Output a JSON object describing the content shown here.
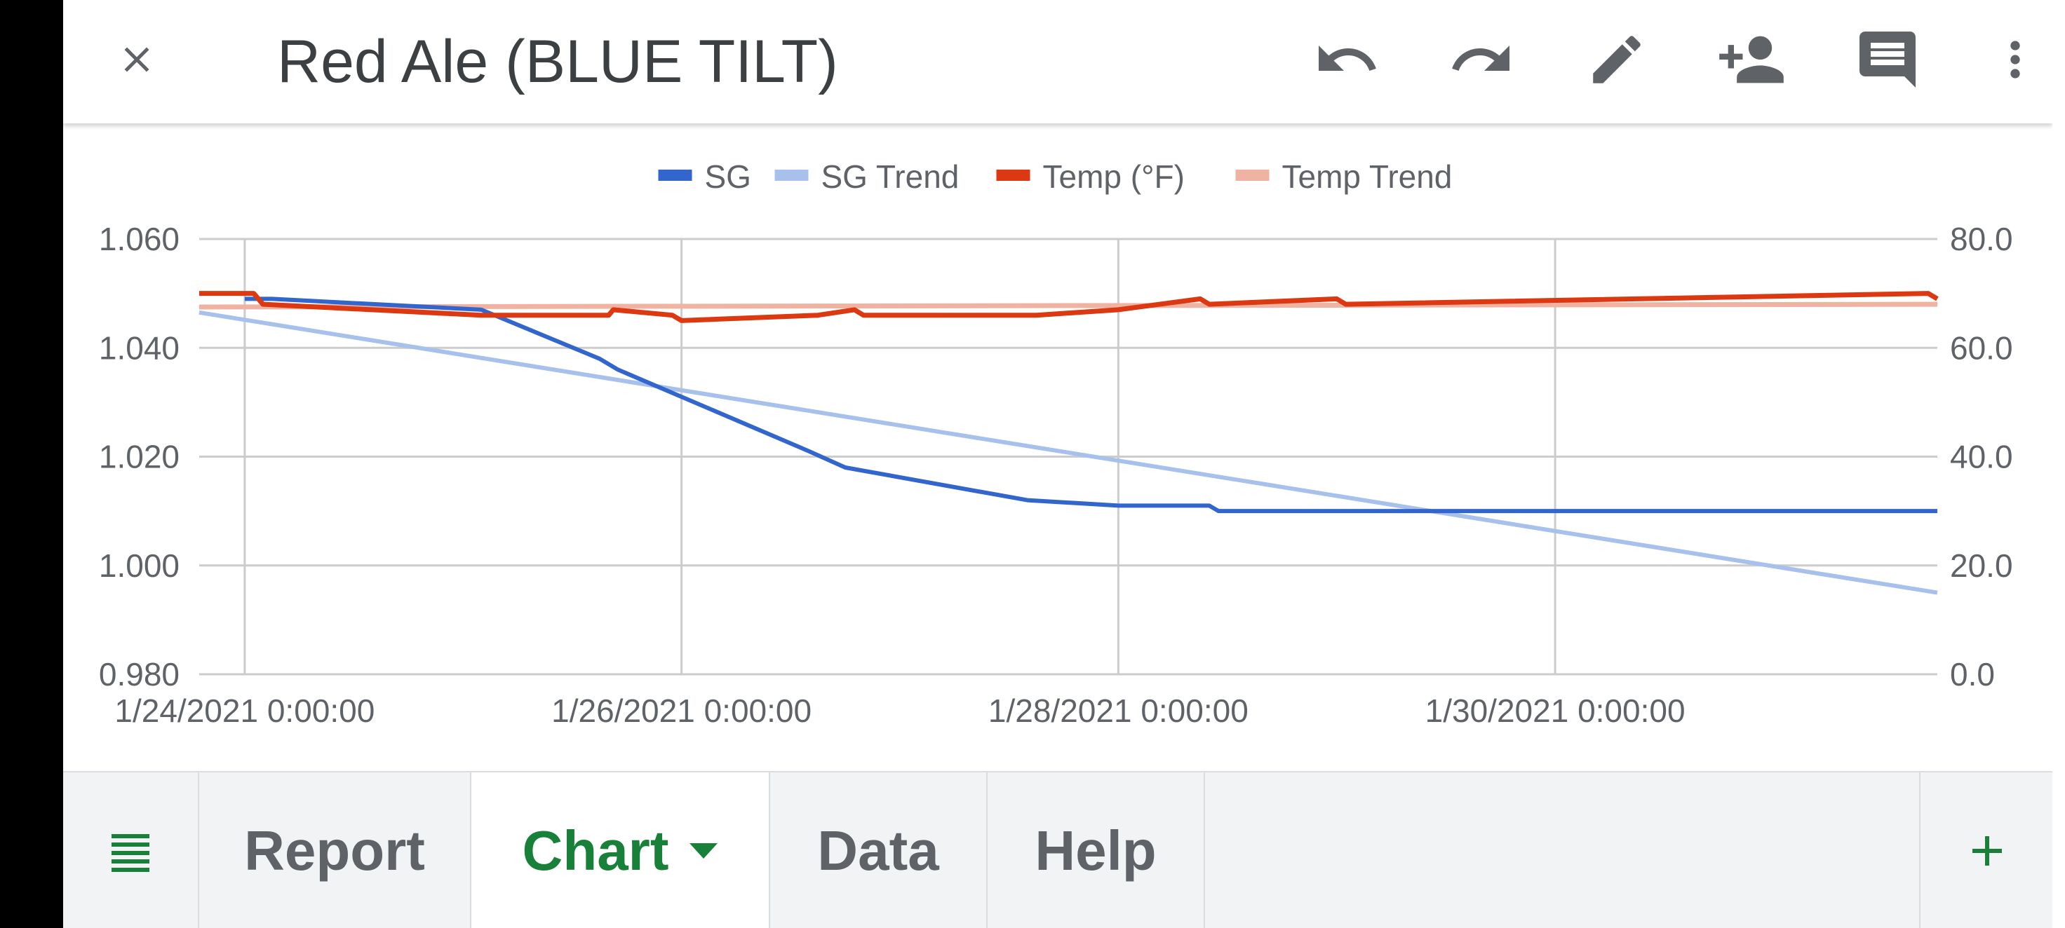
{
  "app": {
    "title": "Red Ale (BLUE TILT)",
    "icons": [
      "close-icon",
      "undo-icon",
      "redo-icon",
      "edit-icon",
      "add-person-icon",
      "comment-icon",
      "more-vert-icon"
    ]
  },
  "tabs": {
    "all_sheets_icon": "menu-icon",
    "items": [
      {
        "label": "Report",
        "active": false
      },
      {
        "label": "Chart",
        "active": true
      },
      {
        "label": "Data",
        "active": false
      },
      {
        "label": "Help",
        "active": false
      }
    ],
    "add_icon": "+"
  },
  "colors": {
    "sg": "#3366cc",
    "sg_trend": "#a8c0ec",
    "temp": "#dc3912",
    "temp_trend": "#f0b3a2",
    "active_tab": "#188038",
    "grid": "#cccccc"
  },
  "chart_data": {
    "type": "line",
    "legend_position": "top",
    "grid": true,
    "series": [
      {
        "name": "SG",
        "axis": "left",
        "points": [
          [
            "1/24/2021 0:00:00",
            1.049
          ],
          [
            "1/24/2021 3:00:00",
            1.049
          ],
          [
            "1/25/2021 2:00:00",
            1.047
          ],
          [
            "1/25/2021 15:00:00",
            1.038
          ],
          [
            "1/25/2021 17:00:00",
            1.036
          ],
          [
            "1/26/2021 0:00:00",
            1.031
          ],
          [
            "1/26/2021 14:00:00",
            1.021
          ],
          [
            "1/26/2021 18:00:00",
            1.018
          ],
          [
            "1/27/2021 14:00:00",
            1.012
          ],
          [
            "1/28/2021 0:00:00",
            1.011
          ],
          [
            "1/28/2021 10:00:00",
            1.011
          ],
          [
            "1/28/2021 11:00:00",
            1.01
          ],
          [
            "1/31/2021 18:00:00",
            1.01
          ]
        ]
      },
      {
        "name": "SG Trend",
        "axis": "left",
        "points": [
          [
            "1/23/2021 19:00:00",
            1.0465
          ],
          [
            "1/31/2021 18:00:00",
            0.995
          ]
        ]
      },
      {
        "name": "Temp (°F)",
        "axis": "right",
        "points": [
          [
            "1/23/2021 19:00:00",
            70
          ],
          [
            "1/24/2021 1:00:00",
            70
          ],
          [
            "1/24/2021 2:00:00",
            68
          ],
          [
            "1/25/2021 2:00:00",
            66
          ],
          [
            "1/25/2021 16:00:00",
            66
          ],
          [
            "1/25/2021 16:30:00",
            67
          ],
          [
            "1/25/2021 23:00:00",
            66
          ],
          [
            "1/26/2021 0:00:00",
            65
          ],
          [
            "1/26/2021 15:00:00",
            66
          ],
          [
            "1/26/2021 19:00:00",
            67
          ],
          [
            "1/26/2021 20:00:00",
            66
          ],
          [
            "1/27/2021 15:00:00",
            66
          ],
          [
            "1/28/2021 0:00:00",
            67
          ],
          [
            "1/28/2021 9:00:00",
            69
          ],
          [
            "1/28/2021 10:00:00",
            68
          ],
          [
            "1/29/2021 0:00:00",
            69
          ],
          [
            "1/29/2021 1:00:00",
            68
          ],
          [
            "1/31/2021 17:00:00",
            70
          ],
          [
            "1/31/2021 18:00:00",
            69
          ]
        ]
      },
      {
        "name": "Temp Trend",
        "axis": "right",
        "points": [
          [
            "1/23/2021 19:00:00",
            67.5
          ],
          [
            "1/31/2021 18:00:00",
            68
          ]
        ]
      }
    ],
    "x_ticks": [
      "1/24/2021 0:00:00",
      "1/26/2021 0:00:00",
      "1/28/2021 0:00:00",
      "1/30/2021 0:00:00"
    ],
    "y_left_ticks": [
      "1.060",
      "1.040",
      "1.020",
      "1.000",
      "0.980"
    ],
    "y_right_ticks": [
      "80.0",
      "60.0",
      "40.0",
      "20.0",
      "0.0"
    ],
    "xlim": [
      "1/23/2021 19:00:00",
      "1/31/2021 18:00:00"
    ],
    "ylim_left": [
      0.98,
      1.06
    ],
    "ylim_right": [
      0,
      80
    ]
  }
}
